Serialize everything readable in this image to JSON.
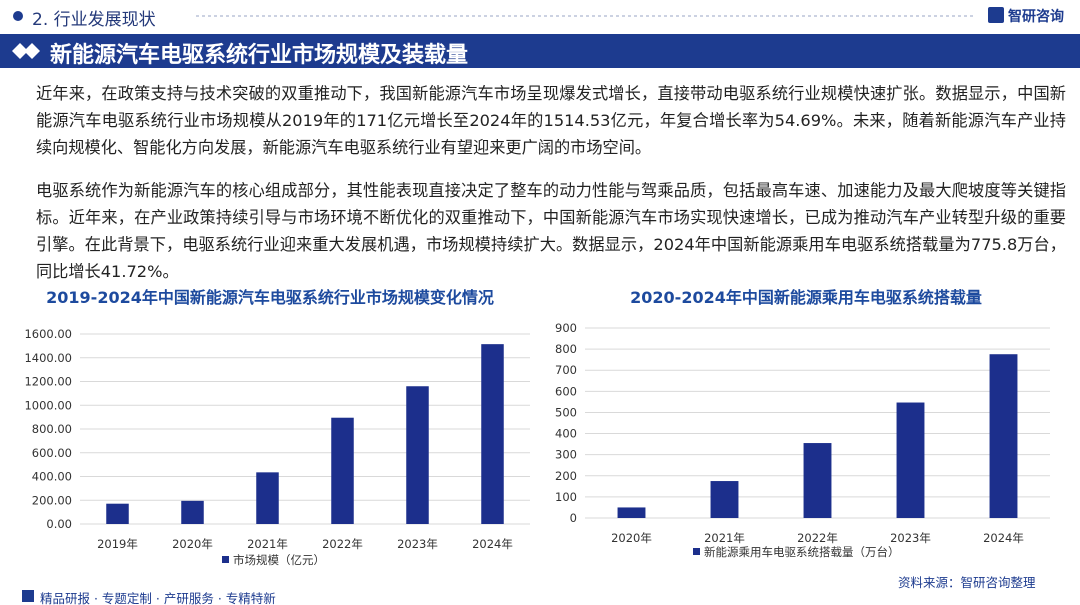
{
  "header": {
    "section": "2. 行业发展现状",
    "logo": "智研咨询"
  },
  "banner": {
    "title": "新能源汽车电驱系统行业市场规模及装载量"
  },
  "paragraphs": [
    "近年来，在政策支持与技术突破的双重推动下，我国新能源汽车市场呈现爆发式增长，直接带动电驱系统行业规模快速扩张。数据显示，中国新能源汽车电驱系统行业市场规模从2019年的171亿元增长至2024年的1514.53亿元，年复合增长率为54.69%。未来，随着新能源汽车产业持续向规模化、智能化方向发展，新能源汽车电驱系统行业有望迎来更广阔的市场空间。",
    "电驱系统作为新能源汽车的核心组成部分，其性能表现直接决定了整车的动力性能与驾乘品质，包括最高车速、加速能力及最大爬坡度等关键指标。近年来，在产业政策持续引导与市场环境不断优化的双重推动下，中国新能源汽车市场实现快速增长，已成为推动汽车产业转型升级的重要引擎。在此背景下，电驱系统行业迎来重大发展机遇，市场规模持续扩大。数据显示，2024年中国新能源乘用车电驱系统搭载量为775.8万台，同比增长41.72%。"
  ],
  "chart_data": [
    {
      "type": "bar",
      "title": "2019-2024年中国新能源汽车电驱系统行业市场规模变化情况",
      "categories": [
        "2019年",
        "2020年",
        "2021年",
        "2022年",
        "2023年",
        "2024年"
      ],
      "series": [
        {
          "name": "市场规模（亿元）",
          "color": "#1c2f8c",
          "values": [
            171,
            195,
            435,
            895,
            1160,
            1514.53
          ]
        }
      ],
      "ylim": [
        0,
        1600
      ],
      "yticks": [
        {
          "value": 0,
          "label": "0.00"
        },
        {
          "value": 200,
          "label": "200.00"
        },
        {
          "value": 400,
          "label": "400.00"
        },
        {
          "value": 600,
          "label": "600.00"
        },
        {
          "value": 800,
          "label": "800.00"
        },
        {
          "value": 1000,
          "label": "1000.00"
        },
        {
          "value": 1200,
          "label": "1200.00"
        },
        {
          "value": 1400,
          "label": "1400.00"
        },
        {
          "value": 1600,
          "label": "1600.00"
        }
      ],
      "grid": true
    },
    {
      "type": "bar",
      "title": "2020-2024年中国新能源乘用车电驱系统搭载量",
      "categories": [
        "2020年",
        "2021年",
        "2022年",
        "2023年",
        "2024年"
      ],
      "series": [
        {
          "name": "新能源乘用车电驱系统搭载量（万台）",
          "color": "#1c2f8c",
          "values": [
            50,
            175,
            355,
            547,
            775.8
          ]
        }
      ],
      "ylim": [
        0,
        900
      ],
      "yticks": [
        0,
        100,
        200,
        300,
        400,
        500,
        600,
        700,
        800,
        900
      ],
      "grid": true
    }
  ],
  "footer": {
    "services": "精品研报 · 专题定制 · 产研服务 · 专精特新",
    "source": "资料来源：智研咨询整理"
  }
}
